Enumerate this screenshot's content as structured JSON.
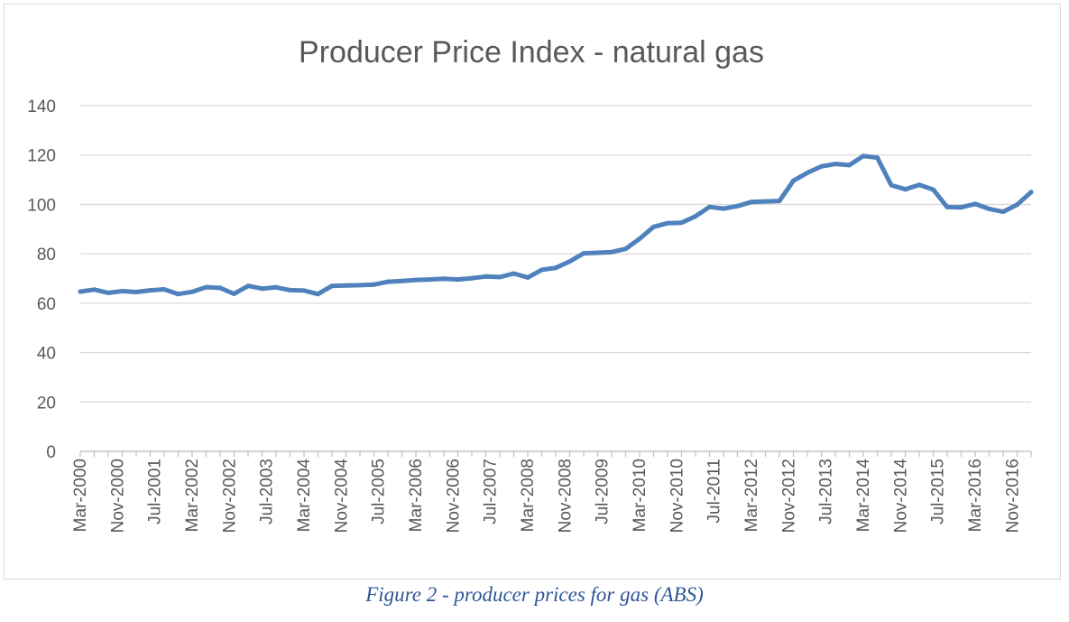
{
  "caption": "Figure 2 - producer prices for gas (ABS)",
  "chart_data": {
    "type": "line",
    "title": "Producer Price Index - natural gas",
    "xlabel": "",
    "ylabel": "",
    "ylim": [
      0,
      140
    ],
    "yticks": [
      0,
      20,
      40,
      60,
      80,
      100,
      120,
      140
    ],
    "grid": true,
    "line_color": "#4f81bd",
    "grid_color": "#d9d9d9",
    "x_tick_labels": [
      "Mar-2000",
      "Nov-2000",
      "Jul-2001",
      "Mar-2002",
      "Nov-2002",
      "Jul-2003",
      "Mar-2004",
      "Nov-2004",
      "Jul-2005",
      "Mar-2006",
      "Nov-2006",
      "Jul-2007",
      "Mar-2008",
      "Nov-2008",
      "Jul-2009",
      "Mar-2010",
      "Nov-2010",
      "Jul-2011",
      "Mar-2012",
      "Nov-2012",
      "Jul-2013",
      "Mar-2014",
      "Nov-2014",
      "Jul-2015",
      "Mar-2016",
      "Nov-2016"
    ],
    "series": [
      {
        "name": "Producer Price Index - natural gas",
        "values": [
          64.7,
          65.5,
          64.2,
          64.9,
          64.5,
          65.2,
          65.6,
          63.7,
          64.6,
          66.5,
          66.2,
          63.8,
          67.0,
          65.9,
          66.4,
          65.3,
          65.1,
          63.7,
          67.0,
          67.2,
          67.3,
          67.5,
          68.7,
          69.0,
          69.4,
          69.6,
          69.9,
          69.6,
          70.1,
          70.8,
          70.6,
          72.0,
          70.4,
          73.5,
          74.3,
          76.9,
          80.2,
          80.4,
          80.7,
          82.0,
          86.1,
          90.9,
          92.4,
          92.6,
          95.2,
          99.0,
          98.3,
          99.3,
          101.0,
          101.2,
          101.4,
          109.6,
          112.8,
          115.4,
          116.4,
          115.9,
          119.6,
          118.9,
          107.8,
          106.1,
          107.9,
          106.0,
          98.9,
          98.8,
          100.2,
          98.2,
          97.0,
          99.9,
          105.0
        ]
      }
    ]
  }
}
